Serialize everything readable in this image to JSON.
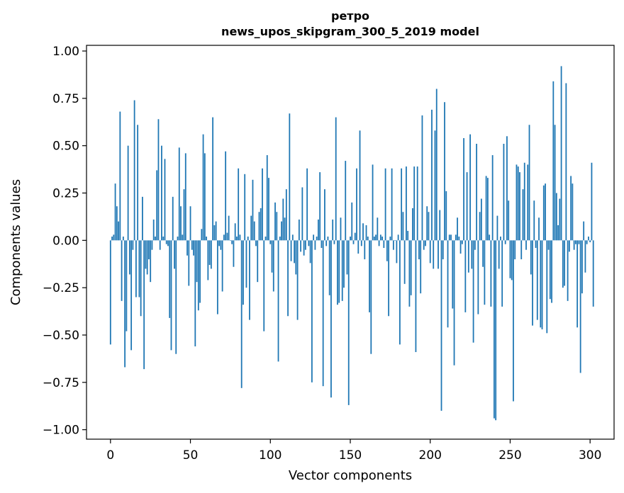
{
  "chart_data": {
    "type": "bar",
    "title": [
      "ретро",
      "news_upos_skipgram_300_5_2019 model"
    ],
    "xlabel": "Vector components",
    "ylabel": "Components values",
    "xlim": [
      -15,
      315
    ],
    "ylim": [
      -1.05,
      1.03
    ],
    "xticks": [
      0,
      50,
      100,
      150,
      200,
      250,
      300
    ],
    "xtick_labels": [
      "0",
      "50",
      "100",
      "150",
      "200",
      "250",
      "300"
    ],
    "yticks": [
      1.0,
      0.75,
      0.5,
      0.25,
      0.0,
      -0.25,
      -0.5,
      -0.75,
      -1.0
    ],
    "ytick_labels": [
      "1.00",
      "0.75",
      "0.50",
      "0.25",
      "0.00",
      "−0.25",
      "−0.50",
      "−0.75",
      "−1.00"
    ],
    "bar_color": "#1f77b4",
    "grid": false,
    "values": [
      -0.55,
      0.02,
      0.03,
      0.3,
      0.18,
      0.1,
      0.68,
      -0.32,
      0.02,
      -0.67,
      -0.48,
      0.5,
      -0.18,
      -0.58,
      -0.05,
      0.74,
      -0.3,
      0.61,
      -0.3,
      -0.4,
      0.23,
      -0.68,
      -0.15,
      -0.18,
      -0.1,
      -0.22,
      -0.05,
      0.11,
      0.02,
      0.37,
      0.64,
      -0.05,
      0.5,
      0.02,
      0.43,
      -0.02,
      -0.03,
      -0.41,
      -0.58,
      0.23,
      -0.15,
      -0.6,
      0.02,
      0.49,
      0.18,
      0.03,
      0.27,
      0.46,
      -0.08,
      -0.24,
      0.18,
      -0.05,
      -0.08,
      -0.56,
      -0.22,
      -0.37,
      -0.33,
      0.06,
      0.56,
      0.46,
      0.02,
      -0.21,
      -0.13,
      -0.15,
      0.65,
      0.08,
      0.1,
      -0.39,
      -0.03,
      -0.05,
      -0.27,
      0.03,
      0.47,
      0.04,
      0.13,
      0.0,
      -0.02,
      -0.14,
      0.09,
      0.02,
      0.38,
      0.03,
      -0.78,
      -0.34,
      0.35,
      -0.25,
      0.02,
      -0.42,
      0.13,
      0.32,
      0.1,
      -0.03,
      -0.22,
      0.15,
      0.17,
      0.38,
      -0.48,
      0.02,
      0.45,
      0.33,
      -0.02,
      -0.17,
      -0.27,
      0.2,
      0.15,
      -0.64,
      0.02,
      0.1,
      0.22,
      0.12,
      0.27,
      -0.4,
      0.67,
      -0.11,
      0.03,
      -0.12,
      -0.18,
      -0.42,
      0.11,
      -0.06,
      0.28,
      -0.08,
      -0.05,
      0.38,
      -0.03,
      -0.12,
      -0.75,
      0.03,
      -0.05,
      0.02,
      0.11,
      0.36,
      -0.04,
      -0.77,
      0.27,
      -0.03,
      0.02,
      -0.29,
      -0.83,
      0.11,
      -0.02,
      0.65,
      -0.34,
      -0.33,
      0.12,
      -0.32,
      -0.25,
      0.42,
      -0.18,
      -0.87,
      0.02,
      0.2,
      -0.02,
      0.04,
      0.38,
      -0.07,
      0.58,
      -0.03,
      0.09,
      -0.1,
      0.08,
      0.02,
      -0.38,
      -0.6,
      0.4,
      0.02,
      0.03,
      0.12,
      -0.03,
      0.03,
      0.02,
      -0.04,
      0.38,
      -0.11,
      -0.4,
      0.02,
      0.38,
      -0.05,
      0.0,
      -0.12,
      0.03,
      -0.55,
      0.38,
      0.15,
      -0.23,
      0.39,
      0.05,
      -0.35,
      -0.29,
      0.17,
      0.39,
      -0.59,
      0.39,
      -0.1,
      -0.28,
      0.66,
      -0.05,
      -0.03,
      0.18,
      0.15,
      -0.12,
      0.69,
      -0.15,
      0.58,
      0.8,
      -0.15,
      0.16,
      -0.9,
      -0.1,
      0.73,
      0.26,
      -0.46,
      0.03,
      0.03,
      -0.36,
      -0.66,
      0.03,
      0.12,
      0.02,
      -0.07,
      -0.02,
      0.54,
      -0.38,
      0.36,
      -0.17,
      0.56,
      -0.15,
      -0.54,
      -0.05,
      0.51,
      -0.39,
      0.15,
      0.22,
      -0.14,
      -0.34,
      0.34,
      0.33,
      0.03,
      -0.35,
      0.45,
      -0.94,
      -0.95,
      0.13,
      -0.15,
      0.02,
      -0.35,
      0.51,
      -0.02,
      0.55,
      0.21,
      -0.2,
      -0.21,
      -0.85,
      -0.1,
      0.4,
      0.39,
      0.36,
      -0.1,
      0.27,
      0.41,
      -0.05,
      0.4,
      0.61,
      -0.18,
      -0.45,
      0.21,
      -0.04,
      -0.42,
      0.12,
      -0.46,
      -0.47,
      0.29,
      0.3,
      -0.49,
      -0.05,
      -0.31,
      -0.33,
      0.84,
      0.61,
      0.25,
      0.08,
      0.22,
      0.92,
      -0.25,
      -0.24,
      0.83,
      -0.32,
      -0.06,
      0.34,
      0.3,
      -0.05,
      -0.02,
      -0.46,
      -0.02,
      -0.7,
      -0.28,
      0.1,
      -0.17,
      -0.02,
      0.02,
      -0.01,
      0.41,
      -0.35
    ]
  }
}
